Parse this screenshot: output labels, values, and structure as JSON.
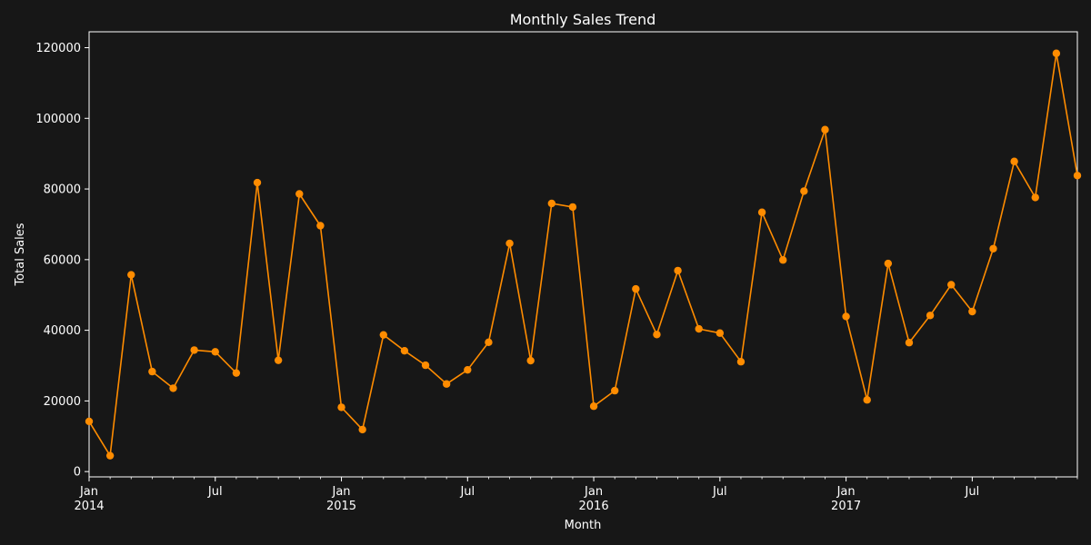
{
  "chart_data": {
    "type": "line",
    "title": "Monthly Sales Trend",
    "xlabel": "Month",
    "ylabel": "Total Sales",
    "x": [
      "2014-01",
      "2014-02",
      "2014-03",
      "2014-04",
      "2014-05",
      "2014-06",
      "2014-07",
      "2014-08",
      "2014-09",
      "2014-10",
      "2014-11",
      "2014-12",
      "2015-01",
      "2015-02",
      "2015-03",
      "2015-04",
      "2015-05",
      "2015-06",
      "2015-07",
      "2015-08",
      "2015-09",
      "2015-10",
      "2015-11",
      "2015-12",
      "2016-01",
      "2016-02",
      "2016-03",
      "2016-04",
      "2016-05",
      "2016-06",
      "2016-07",
      "2016-08",
      "2016-09",
      "2016-10",
      "2016-11",
      "2016-12",
      "2017-01",
      "2017-02",
      "2017-03",
      "2017-04",
      "2017-05",
      "2017-06",
      "2017-07",
      "2017-08",
      "2017-09",
      "2017-10",
      "2017-11",
      "2017-12"
    ],
    "values": [
      14200,
      4500,
      55700,
      28300,
      23600,
      34400,
      33900,
      27900,
      81800,
      31500,
      78600,
      69600,
      18200,
      11900,
      38700,
      34200,
      30100,
      24800,
      28800,
      36600,
      64600,
      31400,
      75900,
      74900,
      18500,
      22900,
      51700,
      38800,
      56900,
      40400,
      39200,
      31100,
      73400,
      59900,
      79400,
      96800,
      43900,
      20300,
      58900,
      36500,
      44200,
      52900,
      45300,
      63100,
      87800,
      77600,
      118400,
      83800
    ],
    "ylim": [
      -1500,
      124500
    ],
    "yticks": [
      0,
      20000,
      40000,
      60000,
      80000,
      100000,
      120000
    ],
    "xticks": [
      {
        "index": 0,
        "label": "Jan",
        "year": "2014"
      },
      {
        "index": 6,
        "label": "Jul",
        "year": ""
      },
      {
        "index": 12,
        "label": "Jan",
        "year": "2015"
      },
      {
        "index": 18,
        "label": "Jul",
        "year": ""
      },
      {
        "index": 24,
        "label": "Jan",
        "year": "2016"
      },
      {
        "index": 30,
        "label": "Jul",
        "year": ""
      },
      {
        "index": 36,
        "label": "Jan",
        "year": "2017"
      },
      {
        "index": 42,
        "label": "Jul",
        "year": ""
      }
    ],
    "grid": false,
    "legend": "none",
    "colors": {
      "background": "#171717",
      "line": "#ff8c00",
      "axis": "#ffffff",
      "text": "#ffffff"
    }
  }
}
